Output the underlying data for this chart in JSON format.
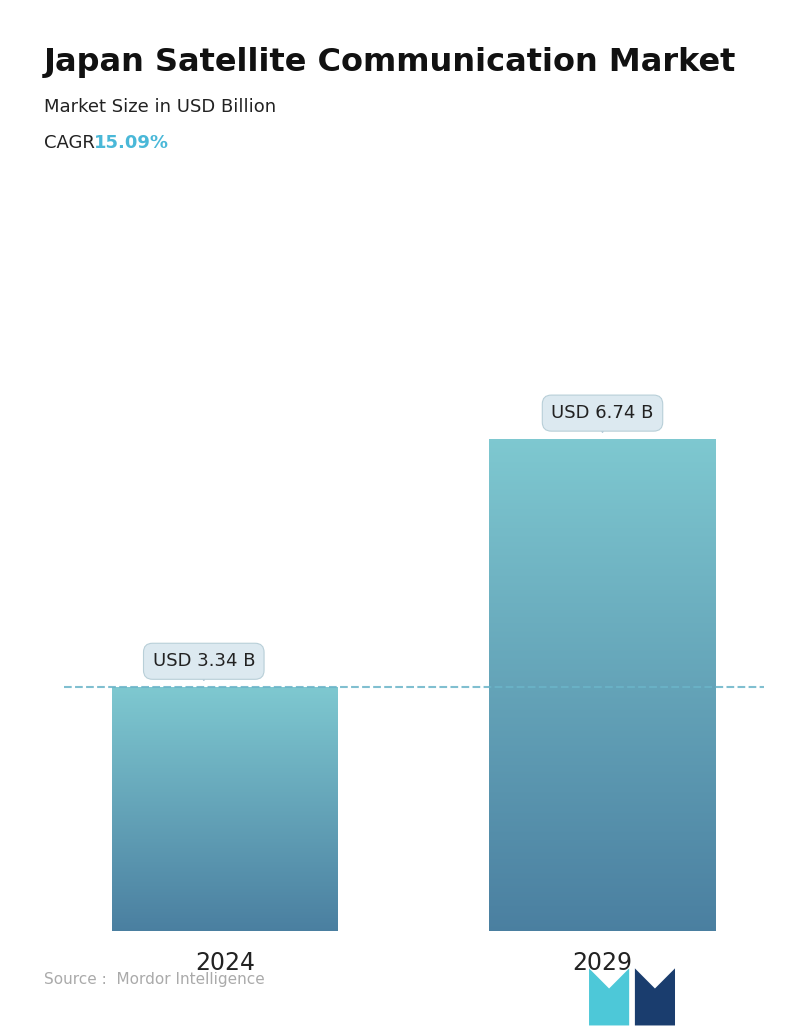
{
  "title": "Japan Satellite Communication Market",
  "subtitle": "Market Size in USD Billion",
  "cagr_label": "CAGR",
  "cagr_value": "15.09%",
  "cagr_color": "#4ab8d8",
  "categories": [
    "2024",
    "2029"
  ],
  "values": [
    3.34,
    6.74
  ],
  "bar_labels": [
    "USD 3.34 B",
    "USD 6.74 B"
  ],
  "bar_top_color": "#7ec8d0",
  "bar_bottom_color": "#4a7fa0",
  "dashed_line_color": "#6ab4c8",
  "dashed_line_y": 3.34,
  "source_text": "Source :  Mordor Intelligence",
  "source_color": "#aaaaaa",
  "background_color": "#ffffff",
  "title_fontsize": 23,
  "subtitle_fontsize": 13,
  "cagr_fontsize": 13,
  "bar_label_fontsize": 13,
  "xlabel_fontsize": 17,
  "source_fontsize": 11,
  "ylim": [
    0,
    8.5
  ],
  "bar_width": 0.42,
  "x_positions": [
    0.3,
    1.0
  ],
  "xlim": [
    0.0,
    1.3
  ]
}
